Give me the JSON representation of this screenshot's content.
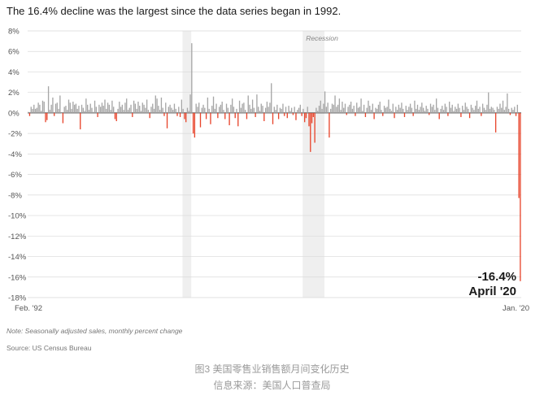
{
  "headline": "The 16.4% decline was the largest since the data series began in 1992.",
  "note": "Note: Seasonally adjusted sales, monthly percent change",
  "source": "Source: US Census Bureau",
  "caption_line1": "图3 美国零售业销售额月间变化历史",
  "caption_line2": "信息来源：美国人口普查局",
  "colors": {
    "positive": "#a6a6a6",
    "negative": "#e8452c",
    "shade": "#efefef",
    "grid": "#d9d9d9"
  },
  "chart_data": {
    "type": "bar",
    "x_start": "Feb. '92",
    "x_end": "Jan. '20",
    "ylim": [
      -18,
      8
    ],
    "yticks": [
      8,
      6,
      4,
      2,
      0,
      -2,
      -4,
      -6,
      -8,
      -10,
      -12,
      -14,
      -16,
      -18
    ],
    "ytick_labels": [
      "8%",
      "6%",
      "4%",
      "2%",
      "0%",
      "-2%",
      "-4%",
      "-6%",
      "-8%",
      "-10%",
      "-12%",
      "-14%",
      "-16%",
      "-18%"
    ],
    "grid": true,
    "recession_shading": [
      {
        "label": "",
        "start_index": 107,
        "end_index": 113
      },
      {
        "label": "Recession",
        "start_index": 190,
        "end_index": 205
      }
    ],
    "annotation": {
      "value_text": "-16.4%",
      "date_text": "April '20"
    },
    "values": [
      0.1,
      -0.3,
      0.6,
      0.4,
      0.8,
      0.4,
      0.5,
      1.0,
      0.8,
      0.2,
      1.2,
      1.1,
      -0.9,
      -0.7,
      2.6,
      0.3,
      0.8,
      1.5,
      -0.3,
      0.9,
      1.0,
      0.4,
      1.7,
      0.0,
      -1.0,
      0.6,
      0.7,
      0.3,
      1.3,
      1.0,
      0.4,
      1.1,
      0.8,
      0.9,
      0.4,
      0.7,
      -1.6,
      0.8,
      0.5,
      0.2,
      1.4,
      0.8,
      0.3,
      0.9,
      0.5,
      0.1,
      1.2,
      0.6,
      -0.4,
      0.8,
      0.6,
      1.0,
      0.7,
      1.3,
      0.4,
      1.0,
      0.8,
      0.3,
      1.2,
      0.6,
      -0.6,
      -0.8,
      0.4,
      1.1,
      0.6,
      0.8,
      0.3,
      1.0,
      1.4,
      0.3,
      0.5,
      0.8,
      -0.4,
      1.2,
      0.9,
      0.4,
      1.1,
      0.7,
      0.2,
      1.0,
      0.8,
      0.5,
      1.3,
      0.3,
      -0.5,
      0.6,
      0.9,
      0.4,
      1.7,
      1.4,
      0.7,
      0.3,
      1.5,
      0.5,
      -0.3,
      1.0,
      -1.5,
      0.6,
      0.8,
      0.5,
      0.3,
      0.9,
      0.4,
      -0.3,
      0.6,
      -0.4,
      1.3,
      0.4,
      -0.6,
      -0.9,
      0.5,
      0.2,
      1.8,
      6.8,
      -2.0,
      -2.4,
      0.9,
      0.6,
      1.0,
      -1.4,
      0.5,
      0.8,
      0.5,
      -0.6,
      1.5,
      0.4,
      -1.1,
      0.7,
      1.6,
      0.4,
      0.9,
      -0.5,
      0.6,
      0.8,
      1.1,
      0.3,
      -0.6,
      0.9,
      0.5,
      -1.2,
      0.8,
      1.4,
      0.6,
      -0.5,
      0.4,
      -1.3,
      1.2,
      0.5,
      0.9,
      1.0,
      0.3,
      -0.6,
      1.7,
      0.8,
      0.4,
      1.3,
      0.5,
      -0.4,
      1.8,
      0.6,
      0.2,
      0.9,
      0.7,
      -0.8,
      0.5,
      1.1,
      0.6,
      1.0,
      2.9,
      -1.1,
      0.6,
      0.3,
      0.8,
      -0.6,
      0.5,
      0.4,
      0.9,
      -0.3,
      0.6,
      -0.5,
      0.7,
      0.2,
      0.5,
      -0.2,
      0.6,
      -0.7,
      0.3,
      0.5,
      0.8,
      -0.3,
      0.4,
      -0.9,
      -0.5,
      0.6,
      -1.3,
      -3.8,
      -1.0,
      -0.4,
      -2.9,
      0.5,
      0.2,
      0.7,
      1.2,
      0.4,
      0.9,
      2.1,
      0.6,
      1.0,
      -2.4,
      0.4,
      0.9,
      0.8,
      1.7,
      0.6,
      0.8,
      1.4,
      0.3,
      1.1,
      0.5,
      0.9,
      -0.2,
      0.6,
      0.8,
      1.1,
      0.4,
      0.7,
      -0.3,
      1.0,
      0.5,
      0.6,
      1.4,
      0.2,
      0.8,
      -0.4,
      0.5,
      1.2,
      0.7,
      0.3,
      0.9,
      -0.6,
      0.5,
      0.4,
      0.8,
      1.1,
      0.3,
      -0.3,
      0.7,
      0.5,
      0.6,
      1.3,
      0.4,
      0.2,
      0.9,
      -0.5,
      0.6,
      0.3,
      0.8,
      0.5,
      1.0,
      0.4,
      -0.4,
      0.7,
      0.3,
      0.6,
      0.9,
      0.5,
      -0.3,
      1.2,
      0.4,
      0.8,
      0.3,
      0.6,
      1.0,
      0.5,
      0.2,
      0.7,
      0.4,
      -0.2,
      0.9,
      0.6,
      0.8,
      0.3,
      1.4,
      0.5,
      -0.6,
      0.4,
      0.7,
      0.3,
      0.9,
      0.6,
      -0.3,
      1.1,
      0.5,
      0.8,
      0.2,
      0.6,
      0.4,
      0.9,
      0.5,
      -0.4,
      0.7,
      0.3,
      1.0,
      0.6,
      0.4,
      -0.5,
      0.8,
      0.5,
      0.3,
      0.7,
      1.2,
      0.4,
      0.6,
      -0.3,
      0.9,
      0.5,
      0.3,
      0.8,
      2.0,
      0.4,
      0.6,
      0.5,
      0.3,
      -1.9,
      0.6,
      0.4,
      0.9,
      0.5,
      1.2,
      0.3,
      0.6,
      1.9,
      0.4,
      -0.2,
      0.5,
      0.3,
      0.6,
      -0.3,
      0.8,
      -8.3,
      -16.4
    ]
  }
}
